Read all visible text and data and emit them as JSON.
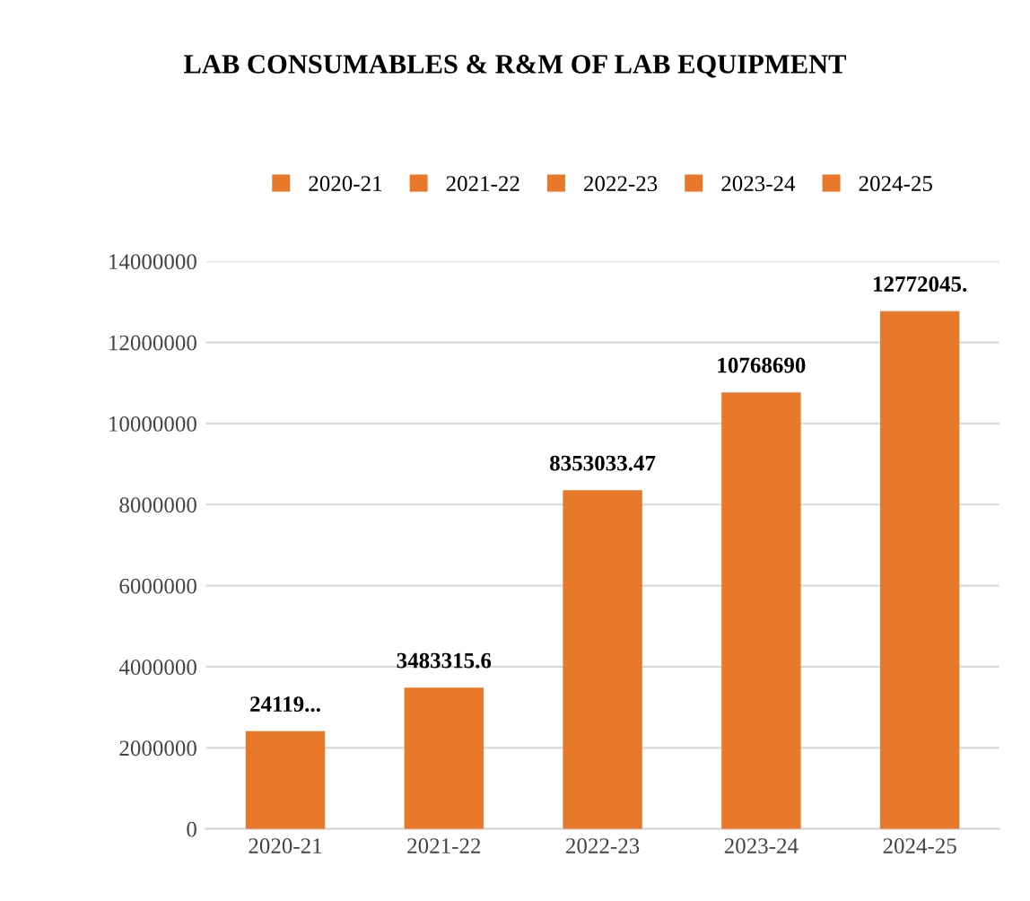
{
  "chart_data": {
    "type": "bar",
    "title": "LAB CONSUMABLES & R&M OF LAB EQUIPMENT",
    "stacked": true,
    "categories": [
      "2020-21",
      "2021-22",
      "2022-23",
      "2023-24",
      "2024-25"
    ],
    "series": [
      {
        "name": "2020-21",
        "color": "#e8792b",
        "values": [
          2410000,
          null,
          null,
          null,
          null
        ],
        "value_labels": [
          "24119...",
          null,
          null,
          null,
          null
        ]
      },
      {
        "name": "2021-22",
        "color": "#e8792b",
        "values": [
          null,
          3483315.6,
          null,
          null,
          null
        ],
        "value_labels": [
          null,
          "3483315.6",
          null,
          null,
          null
        ]
      },
      {
        "name": "2022-23",
        "color": "#e8792b",
        "values": [
          null,
          null,
          8353033.47,
          null,
          null
        ],
        "value_labels": [
          null,
          null,
          "8353033.47",
          null,
          null
        ]
      },
      {
        "name": "2023-24",
        "color": "#e8792b",
        "values": [
          null,
          null,
          null,
          10768690,
          null
        ],
        "value_labels": [
          null,
          null,
          null,
          "10768690",
          null
        ]
      },
      {
        "name": "2024-25",
        "color": "#e8792b",
        "values": [
          null,
          null,
          null,
          null,
          12772045
        ],
        "value_labels": [
          null,
          null,
          null,
          null,
          "12772045."
        ]
      }
    ],
    "ylim": [
      0,
      14000000
    ],
    "yticks": [
      0,
      2000000,
      4000000,
      6000000,
      8000000,
      10000000,
      12000000,
      14000000
    ],
    "grid": "y",
    "legend": "top"
  }
}
